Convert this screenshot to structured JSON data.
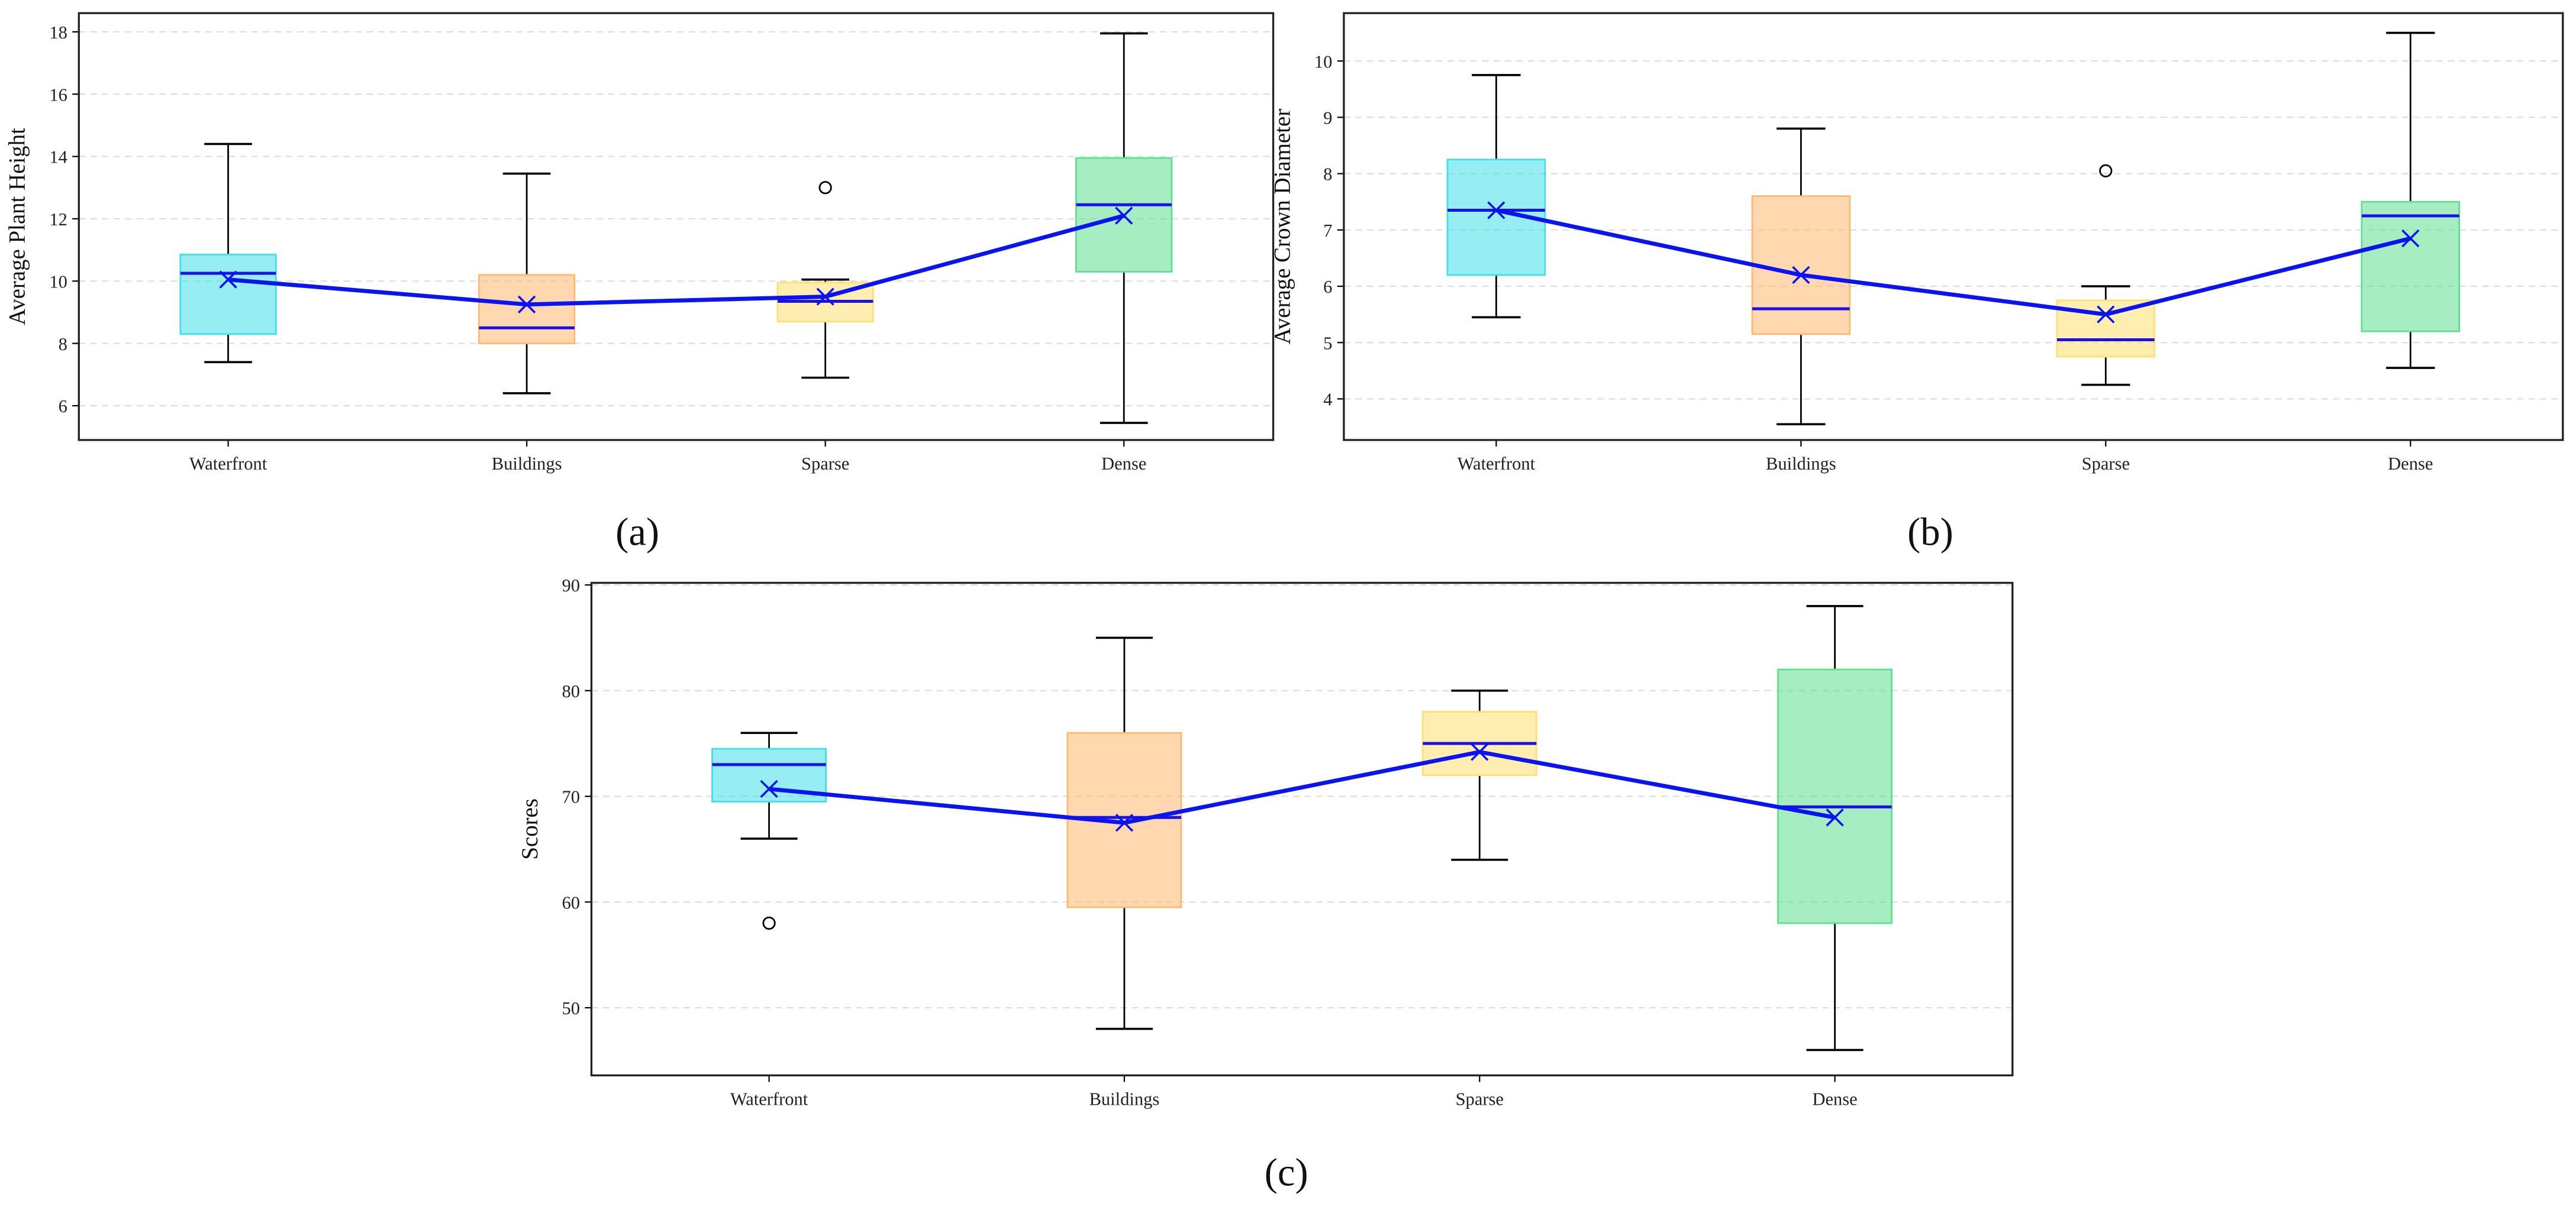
{
  "colors": {
    "box": [
      "#40e0e8",
      "#ffb870",
      "#ffe070",
      "#5de090"
    ],
    "line": "#0a14f0",
    "median": "#1a10e8"
  },
  "chart_data": [
    {
      "type": "box",
      "panel_label": "(a)",
      "ylabel": "Average Plant Height",
      "categories": [
        "Waterfront",
        "Buildings",
        "Sparse",
        "Dense"
      ],
      "yticks": [
        6,
        8,
        10,
        12,
        14,
        16,
        18
      ],
      "ylim": [
        4.9,
        18.6
      ],
      "grid": true,
      "boxes": [
        {
          "low": 7.4,
          "q1": 8.3,
          "median": 10.25,
          "q3": 10.85,
          "high": 14.4,
          "mean": 10.05,
          "outliers": []
        },
        {
          "low": 6.4,
          "q1": 8.0,
          "median": 8.5,
          "q3": 10.2,
          "high": 13.45,
          "mean": 9.25,
          "outliers": []
        },
        {
          "low": 6.9,
          "q1": 8.7,
          "median": 9.35,
          "q3": 9.95,
          "high": 10.05,
          "mean": 9.5,
          "outliers": [
            13.0
          ]
        },
        {
          "low": 5.45,
          "q1": 10.3,
          "median": 12.45,
          "q3": 13.95,
          "high": 17.95,
          "mean": 12.1,
          "outliers": []
        }
      ]
    },
    {
      "type": "box",
      "panel_label": "(b)",
      "ylabel": "Average Crown Diameter",
      "categories": [
        "Waterfront",
        "Buildings",
        "Sparse",
        "Dense"
      ],
      "yticks": [
        4,
        5,
        6,
        7,
        8,
        9,
        10
      ],
      "ylim": [
        3.27,
        10.85
      ],
      "grid": true,
      "boxes": [
        {
          "low": 5.45,
          "q1": 6.2,
          "median": 7.35,
          "q3": 8.25,
          "high": 9.75,
          "mean": 7.35,
          "outliers": []
        },
        {
          "low": 3.55,
          "q1": 5.15,
          "median": 5.6,
          "q3": 7.6,
          "high": 8.8,
          "mean": 6.2,
          "outliers": []
        },
        {
          "low": 4.25,
          "q1": 4.75,
          "median": 5.05,
          "q3": 5.75,
          "high": 6.0,
          "mean": 5.5,
          "outliers": [
            8.05
          ]
        },
        {
          "low": 4.55,
          "q1": 5.2,
          "median": 7.25,
          "q3": 7.5,
          "high": 10.5,
          "mean": 6.85,
          "outliers": []
        }
      ]
    },
    {
      "type": "box",
      "panel_label": "(c)",
      "ylabel": "Scores",
      "categories": [
        "Waterfront",
        "Buildings",
        "Sparse",
        "Dense"
      ],
      "yticks": [
        50,
        60,
        70,
        80,
        90
      ],
      "ylim": [
        43.6,
        90.2
      ],
      "grid": true,
      "boxes": [
        {
          "low": 66,
          "q1": 69.5,
          "median": 73,
          "q3": 74.5,
          "high": 76,
          "mean": 70.7,
          "outliers": [
            58
          ]
        },
        {
          "low": 48,
          "q1": 59.5,
          "median": 68,
          "q3": 76,
          "high": 85,
          "mean": 67.5,
          "outliers": []
        },
        {
          "low": 64,
          "q1": 72,
          "median": 75,
          "q3": 78,
          "high": 80,
          "mean": 74.2,
          "outliers": []
        },
        {
          "low": 46,
          "q1": 58,
          "median": 69,
          "q3": 82,
          "high": 88,
          "mean": 68,
          "outliers": []
        }
      ]
    }
  ]
}
